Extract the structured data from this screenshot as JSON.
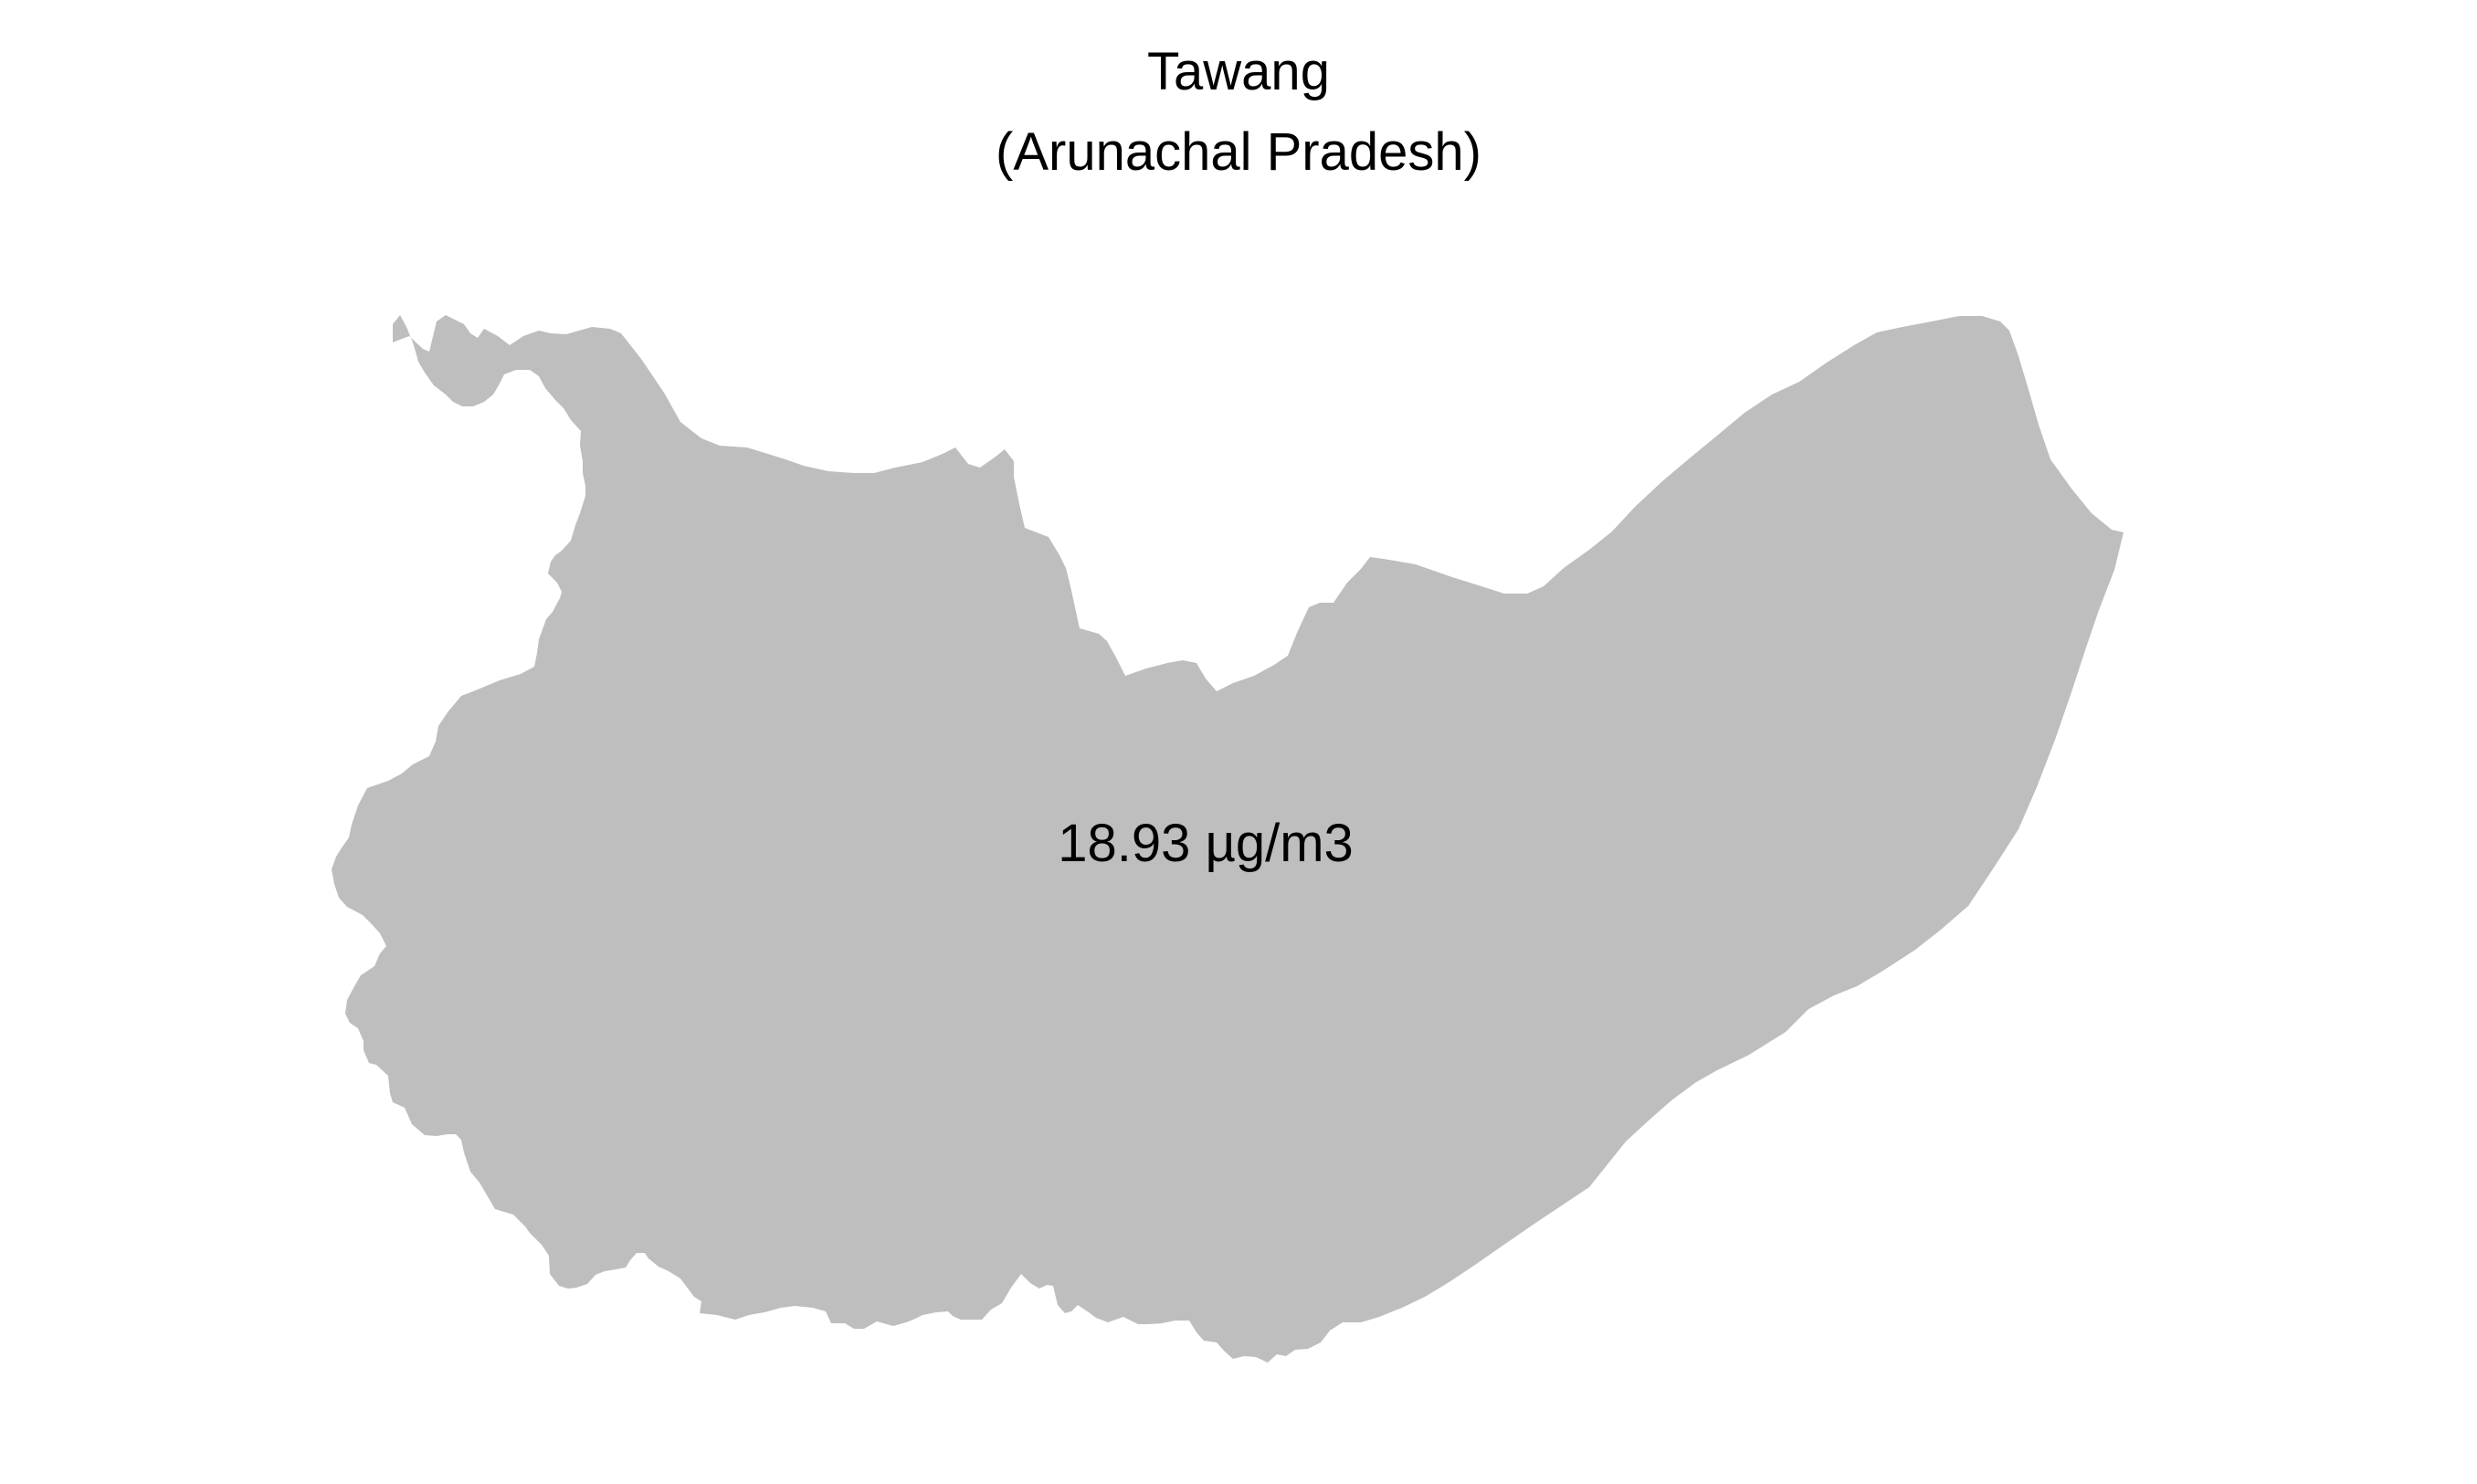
{
  "title": "Tawang",
  "subtitle": "(Arunachal Pradesh)",
  "region": {
    "name": "Tawang",
    "value_label": "18.93 µg/m3",
    "fill_color": "#bebebe"
  },
  "colors": {
    "background": "#ffffff",
    "text": "#000000"
  }
}
